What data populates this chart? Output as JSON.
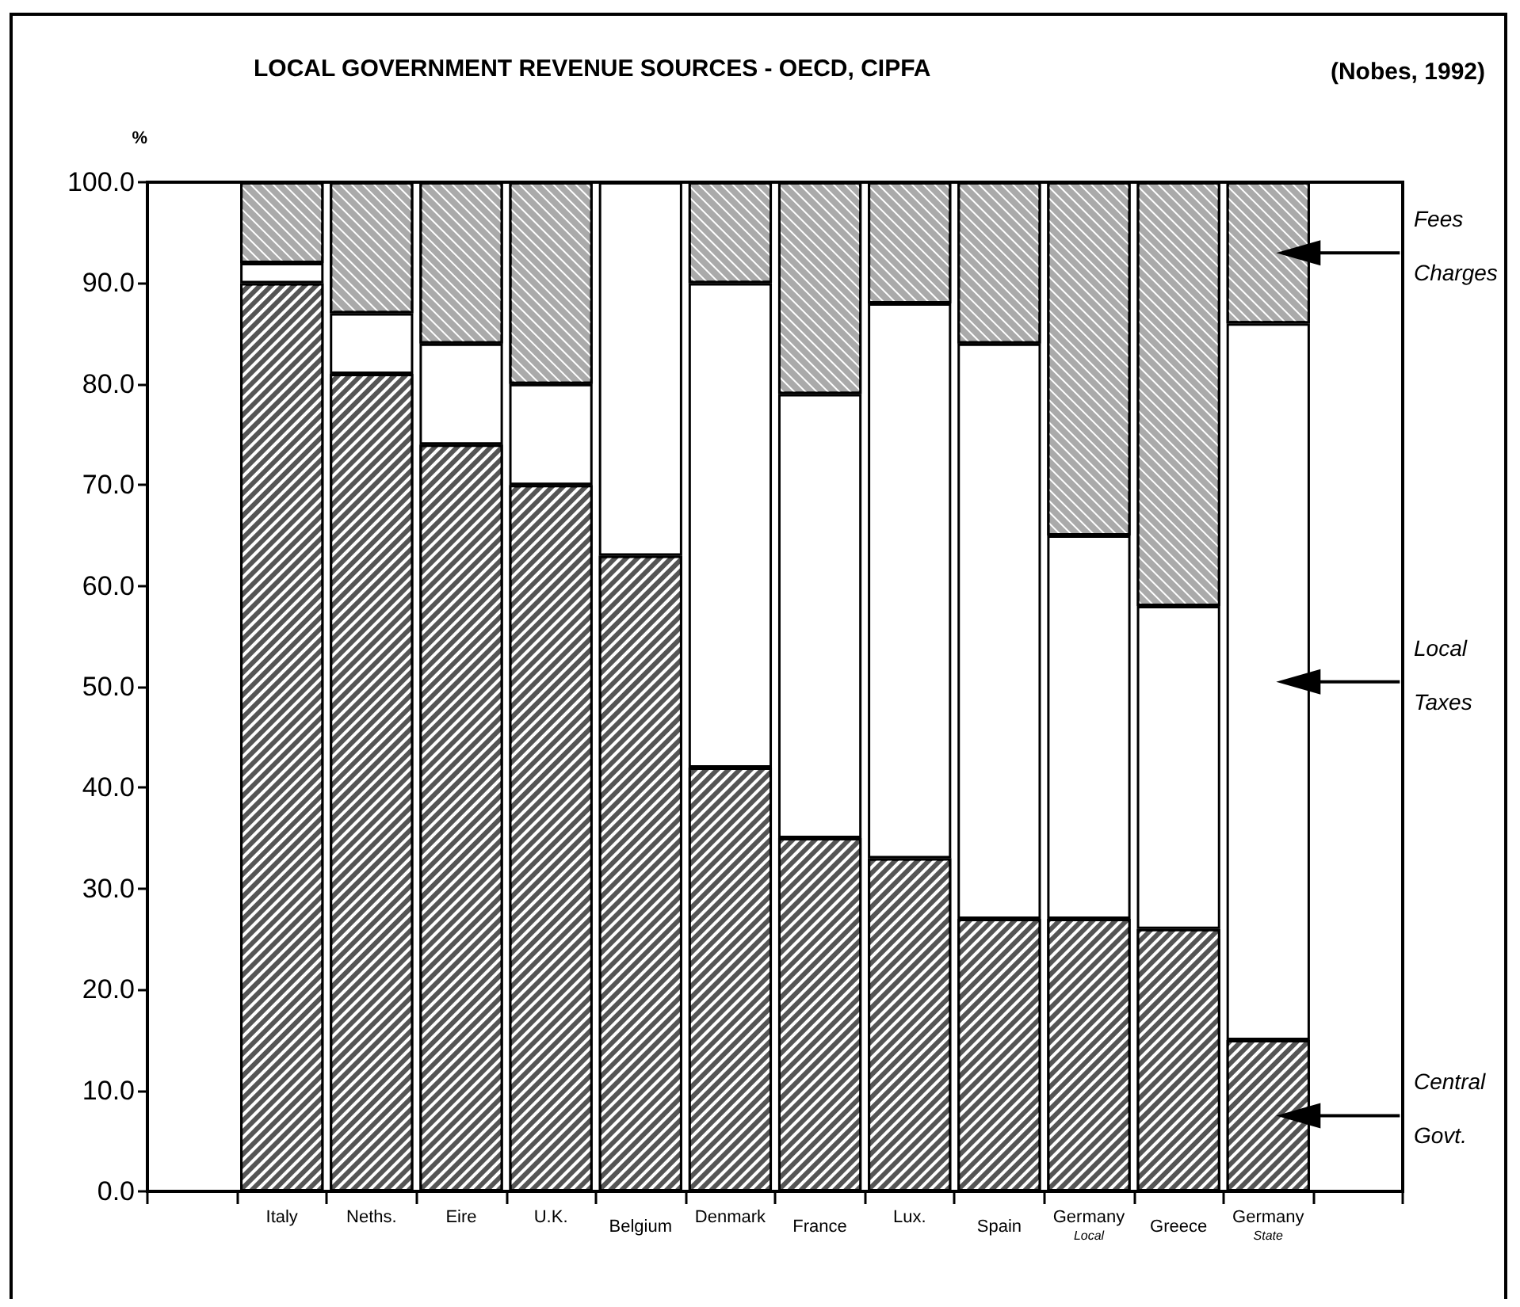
{
  "chart_data": {
    "type": "bar",
    "title": "LOCAL GOVERNMENT REVENUE SOURCES - OECD, CIPFA",
    "ylabel": "%",
    "annotations": [
      "(Nobes, 1992)"
    ],
    "categories": [
      null,
      "Italy",
      "Neths.",
      "Eire",
      "U.K.",
      "Belgium",
      "Denmark",
      "France",
      "Lux.",
      "Spain",
      "Germany\nLocal",
      "Greece",
      "Germany\nState",
      null
    ],
    "stacked": true,
    "series": [
      {
        "name": "Central Govt.",
        "color": "#555555",
        "values": [
          null,
          90,
          81,
          74,
          70,
          63,
          42,
          35,
          33,
          27,
          27,
          26,
          15,
          null
        ]
      },
      {
        "name": "Local Taxes",
        "color": "#ffffff",
        "values": [
          null,
          2,
          6,
          10,
          10,
          37,
          48,
          44,
          55,
          57,
          38,
          32,
          71,
          null
        ]
      },
      {
        "name": "Fees Charges",
        "color": "#aaaaaa",
        "values": [
          null,
          8,
          13,
          16,
          20,
          null,
          10,
          21,
          12,
          16,
          35,
          42,
          14,
          null
        ]
      }
    ],
    "ylim": [
      0,
      100
    ],
    "yticks": [
      {
        "value": 0,
        "label": "0.0"
      },
      {
        "value": 10,
        "label": "10.0"
      },
      {
        "value": 20,
        "label": "20.0"
      },
      {
        "value": 30,
        "label": "30.0"
      },
      {
        "value": 40,
        "label": "40.0"
      },
      {
        "value": 50,
        "label": "50.0"
      },
      {
        "value": 60,
        "label": "60.0"
      },
      {
        "value": 70,
        "label": "70.0"
      },
      {
        "value": 80,
        "label": "80.0"
      },
      {
        "value": 90,
        "label": "90.0"
      },
      {
        "value": 100,
        "label": "100.0"
      }
    ],
    "grid": false
  }
}
